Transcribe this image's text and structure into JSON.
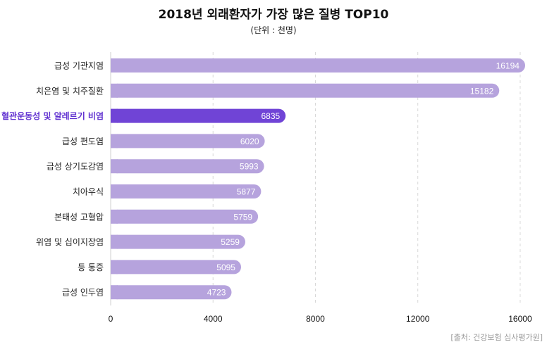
{
  "chart_data": {
    "type": "bar",
    "orientation": "horizontal",
    "title": "2018년 외래환자가 가장 많은 질병 TOP10",
    "subtitle": "(단위 : 천명)",
    "source": "[출처: 건강보험 심사평가원]",
    "categories": [
      "급성 기관지염",
      "치은염 및 치주질환",
      "혈관운동성 및 알레르기 비염",
      "급성 편도염",
      "급성 상기도감염",
      "치아우식",
      "본태성 고혈압",
      "위염 및 십이지장염",
      "등 통증",
      "급성 인두염"
    ],
    "values": [
      16194,
      15182,
      6835,
      6020,
      5993,
      5877,
      5759,
      5259,
      5095,
      4723
    ],
    "highlight_index": 2,
    "xlim": [
      0,
      16800
    ],
    "xticks": [
      0,
      4000,
      8000,
      12000,
      16000
    ],
    "colors": {
      "bar": "#b6a3dd",
      "highlight": "#7044d6",
      "highlight_text": "#5f2fd0"
    }
  }
}
